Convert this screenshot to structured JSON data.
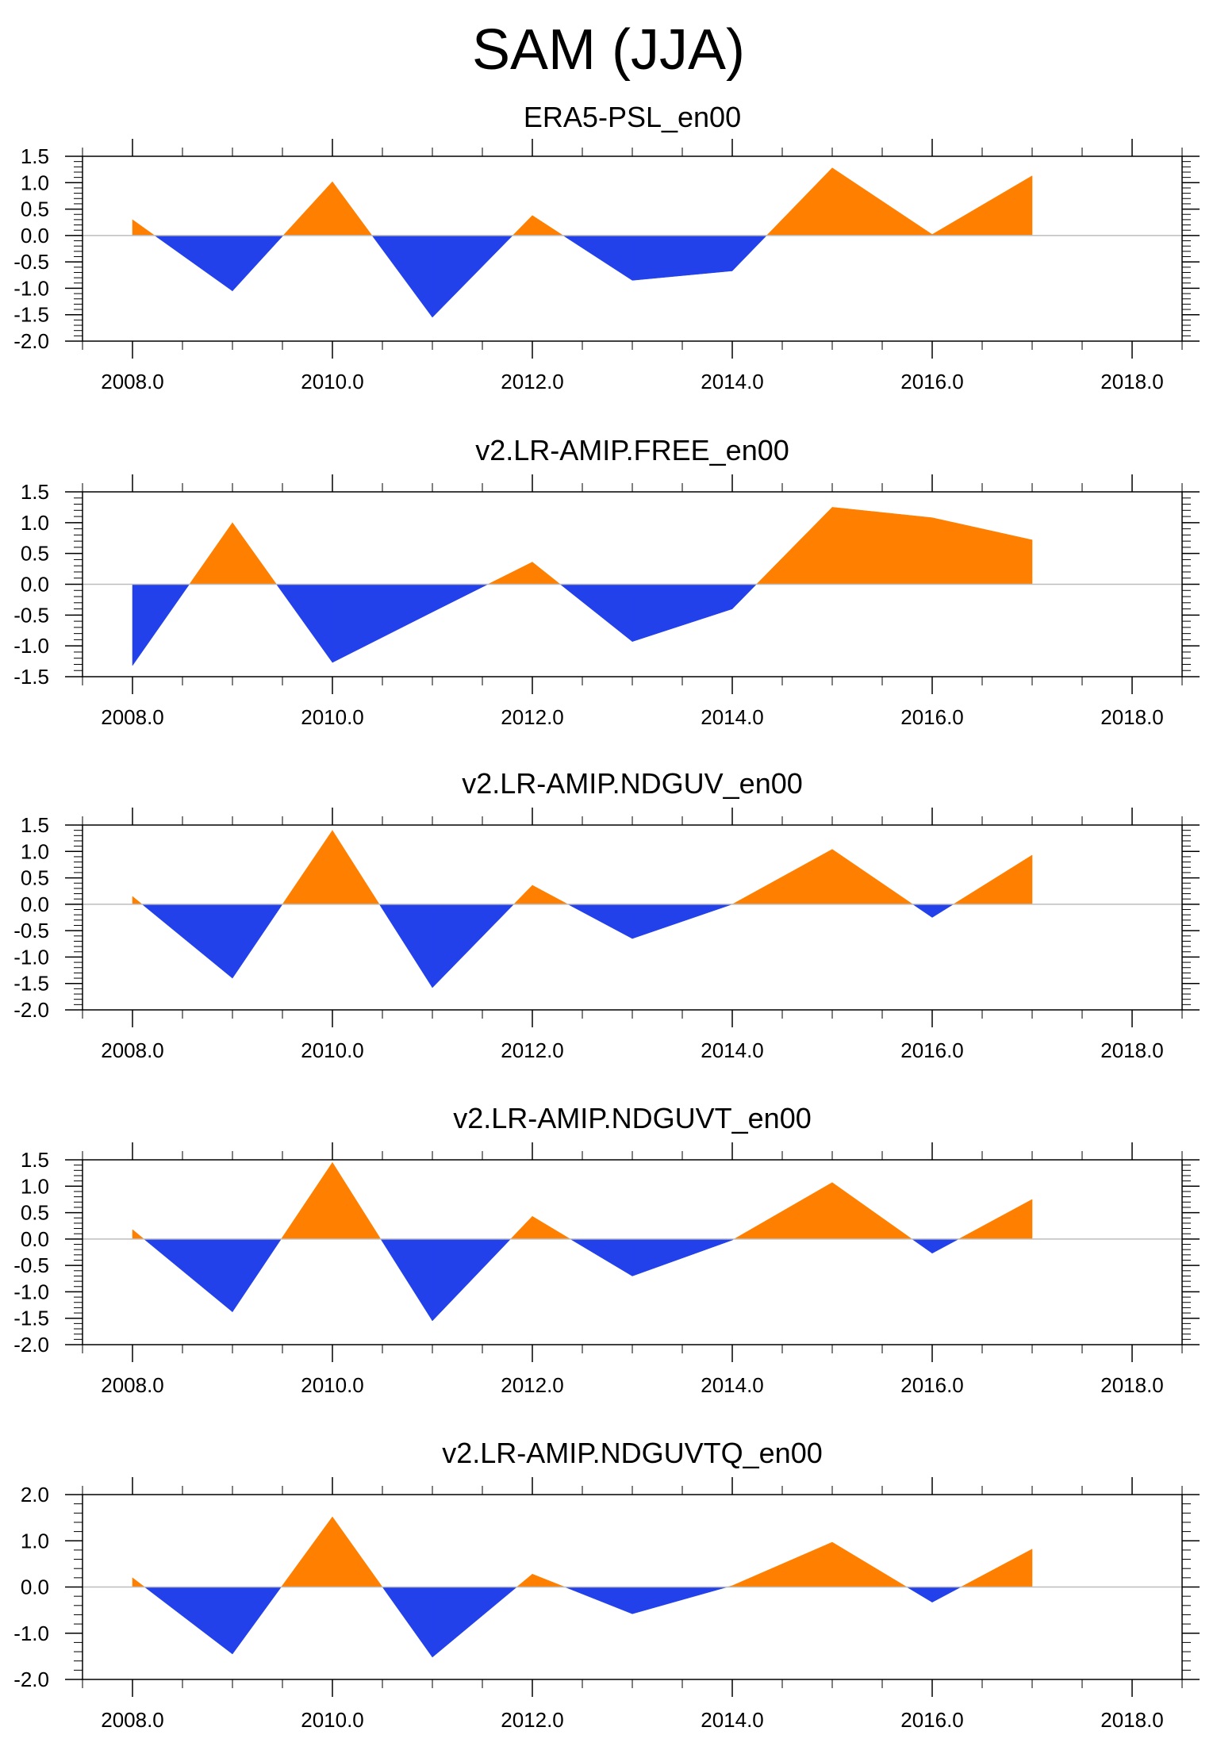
{
  "page": {
    "title": "SAM (JJA)"
  },
  "colors": {
    "positive": "#ff8000",
    "negative": "#2341eb",
    "axis": "#000000",
    "zero_line": "#bdbdbd"
  },
  "chart_data": [
    {
      "type": "area",
      "title": "ERA5-PSL_en00",
      "x": [
        2008,
        2009,
        2010,
        2011,
        2012,
        2013,
        2014,
        2015,
        2016,
        2017
      ],
      "values": [
        0.3,
        -1.05,
        1.02,
        -1.55,
        0.38,
        -0.85,
        -0.67,
        1.28,
        0.02,
        1.13
      ],
      "xlim": [
        2007.5,
        2018.5
      ],
      "ylim": [
        -2.0,
        1.5
      ],
      "xticks": [
        2008,
        2010,
        2012,
        2014,
        2016,
        2018
      ],
      "xtick_labels": [
        "2008.0",
        "2010.0",
        "2012.0",
        "2014.0",
        "2016.0",
        "2018.0"
      ],
      "yticks": [
        1.5,
        1.0,
        0.5,
        0.0,
        -0.5,
        -1.0,
        -1.5,
        -2.0
      ],
      "ytick_labels": [
        "1.5",
        "1.0",
        "0.5",
        "0.0",
        "-0.5",
        "-1.0",
        "-1.5",
        "-2.0"
      ],
      "yminor": 0.1,
      "reference_line": 0.0,
      "xlabel": "",
      "ylabel": ""
    },
    {
      "type": "area",
      "title": "v2.LR-AMIP.FREE_en00",
      "x": [
        2008,
        2009,
        2010,
        2011,
        2012,
        2013,
        2014,
        2015,
        2016,
        2017
      ],
      "values": [
        -1.32,
        1.0,
        -1.27,
        -0.45,
        0.36,
        -0.93,
        -0.4,
        1.25,
        1.08,
        0.72
      ],
      "xlim": [
        2007.5,
        2018.5
      ],
      "ylim": [
        -1.5,
        1.5
      ],
      "xticks": [
        2008,
        2010,
        2012,
        2014,
        2016,
        2018
      ],
      "xtick_labels": [
        "2008.0",
        "2010.0",
        "2012.0",
        "2014.0",
        "2016.0",
        "2018.0"
      ],
      "yticks": [
        1.5,
        1.0,
        0.5,
        0.0,
        -0.5,
        -1.0,
        -1.5
      ],
      "ytick_labels": [
        "1.5",
        "1.0",
        "0.5",
        "0.0",
        "-0.5",
        "-1.0",
        "-1.5"
      ],
      "yminor": 0.1,
      "reference_line": 0.0,
      "xlabel": "",
      "ylabel": ""
    },
    {
      "type": "area",
      "title": "v2.LR-AMIP.NDGUV_en00",
      "x": [
        2008,
        2009,
        2010,
        2011,
        2012,
        2013,
        2014,
        2015,
        2016,
        2017
      ],
      "values": [
        0.15,
        -1.4,
        1.4,
        -1.58,
        0.36,
        -0.65,
        0.0,
        1.04,
        -0.25,
        0.93
      ],
      "xlim": [
        2007.5,
        2018.5
      ],
      "ylim": [
        -2.0,
        1.5
      ],
      "xticks": [
        2008,
        2010,
        2012,
        2014,
        2016,
        2018
      ],
      "xtick_labels": [
        "2008.0",
        "2010.0",
        "2012.0",
        "2014.0",
        "2016.0",
        "2018.0"
      ],
      "yticks": [
        1.5,
        1.0,
        0.5,
        0.0,
        -0.5,
        -1.0,
        -1.5,
        -2.0
      ],
      "ytick_labels": [
        "1.5",
        "1.0",
        "0.5",
        "0.0",
        "-0.5",
        "-1.0",
        "-1.5",
        "-2.0"
      ],
      "yminor": 0.1,
      "reference_line": 0.0,
      "xlabel": "",
      "ylabel": ""
    },
    {
      "type": "area",
      "title": "v2.LR-AMIP.NDGUVT_en00",
      "x": [
        2008,
        2009,
        2010,
        2011,
        2012,
        2013,
        2014,
        2015,
        2016,
        2017
      ],
      "values": [
        0.18,
        -1.38,
        1.45,
        -1.55,
        0.43,
        -0.7,
        -0.02,
        1.07,
        -0.27,
        0.75
      ],
      "xlim": [
        2007.5,
        2018.5
      ],
      "ylim": [
        -2.0,
        1.5
      ],
      "xticks": [
        2008,
        2010,
        2012,
        2014,
        2016,
        2018
      ],
      "xtick_labels": [
        "2008.0",
        "2010.0",
        "2012.0",
        "2014.0",
        "2016.0",
        "2018.0"
      ],
      "yticks": [
        1.5,
        1.0,
        0.5,
        0.0,
        -0.5,
        -1.0,
        -1.5,
        -2.0
      ],
      "ytick_labels": [
        "1.5",
        "1.0",
        "0.5",
        "0.0",
        "-0.5",
        "-1.0",
        "-1.5",
        "-2.0"
      ],
      "yminor": 0.1,
      "reference_line": 0.0,
      "xlabel": "",
      "ylabel": ""
    },
    {
      "type": "area",
      "title": "v2.LR-AMIP.NDGUVTQ_en00",
      "x": [
        2008,
        2009,
        2010,
        2011,
        2012,
        2013,
        2014,
        2015,
        2016,
        2017
      ],
      "values": [
        0.2,
        -1.45,
        1.52,
        -1.52,
        0.28,
        -0.58,
        0.03,
        0.97,
        -0.33,
        0.82
      ],
      "xlim": [
        2007.5,
        2018.5
      ],
      "ylim": [
        -2.0,
        2.0
      ],
      "xticks": [
        2008,
        2010,
        2012,
        2014,
        2016,
        2018
      ],
      "xtick_labels": [
        "2008.0",
        "2010.0",
        "2012.0",
        "2014.0",
        "2016.0",
        "2018.0"
      ],
      "yticks": [
        2.0,
        1.0,
        0.0,
        -1.0,
        -2.0
      ],
      "ytick_labels": [
        "2.0",
        "1.0",
        "0.0",
        "-1.0",
        "-2.0"
      ],
      "yminor": 0.2,
      "reference_line": 0.0,
      "xlabel": "",
      "ylabel": ""
    }
  ]
}
